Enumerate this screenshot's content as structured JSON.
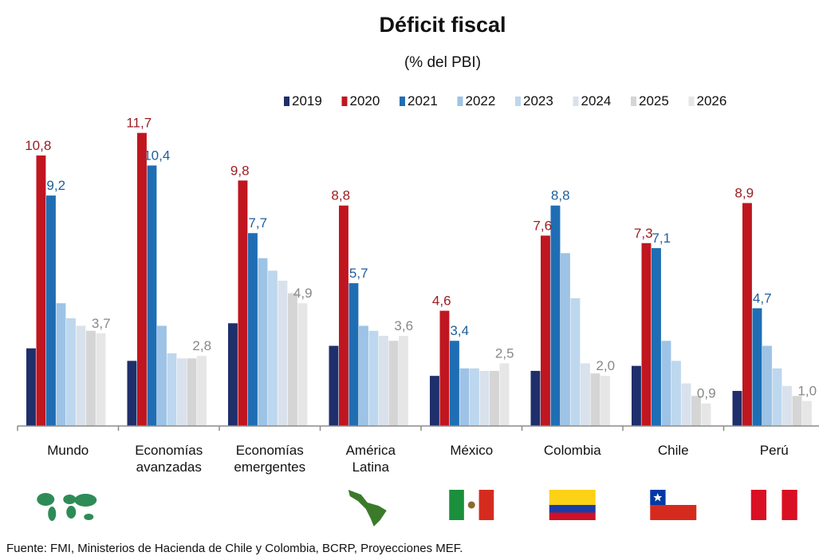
{
  "chart_data": {
    "type": "bar",
    "title": "Déficit fiscal",
    "subtitle": "(% del PBI)",
    "xlabel": "",
    "ylabel": "",
    "grid": false,
    "legend_position": "top",
    "categories": [
      [
        "Mundo"
      ],
      [
        "Economías",
        "avanzadas"
      ],
      [
        "Economías",
        "emergentes"
      ],
      [
        "América",
        "Latina"
      ],
      [
        "México"
      ],
      [
        "Colombia"
      ],
      [
        "Chile"
      ],
      [
        "Perú"
      ]
    ],
    "series": [
      {
        "name": "2019",
        "color": "#1f2f6b",
        "values": [
          3.1,
          2.6,
          4.1,
          3.2,
          2.0,
          2.2,
          2.4,
          1.4
        ]
      },
      {
        "name": "2020",
        "color": "#c0161f",
        "values": [
          10.8,
          11.7,
          9.8,
          8.8,
          4.6,
          7.6,
          7.3,
          8.9
        ]
      },
      {
        "name": "2021",
        "color": "#1f6eb4",
        "values": [
          9.2,
          10.4,
          7.7,
          5.7,
          3.4,
          8.8,
          7.1,
          4.7
        ]
      },
      {
        "name": "2022",
        "color": "#9dc3e6",
        "values": [
          4.9,
          4.0,
          6.7,
          4.0,
          2.3,
          6.9,
          3.4,
          3.2
        ]
      },
      {
        "name": "2023",
        "color": "#bdd7ee",
        "values": [
          4.3,
          2.9,
          6.2,
          3.8,
          2.3,
          5.1,
          2.6,
          2.3
        ]
      },
      {
        "name": "2024",
        "color": "#d9e1ec",
        "values": [
          4.0,
          2.7,
          5.8,
          3.6,
          2.2,
          2.5,
          1.7,
          1.6
        ]
      },
      {
        "name": "2025",
        "color": "#d5d5d5",
        "values": [
          3.8,
          2.7,
          5.3,
          3.4,
          2.2,
          2.1,
          1.2,
          1.2
        ]
      },
      {
        "name": "2026",
        "color": "#e6e6e6",
        "values": [
          3.7,
          2.8,
          4.9,
          3.6,
          2.5,
          2.0,
          0.9,
          1.0
        ]
      }
    ],
    "labels": [
      {
        "category": 0,
        "series": "2020",
        "text": "10,8",
        "color": "#9b1b1f"
      },
      {
        "category": 0,
        "series": "2021",
        "text": "9,2",
        "color": "#1f5f9b"
      },
      {
        "category": 0,
        "series": "2026",
        "text": "3,7",
        "color": "#888888"
      },
      {
        "category": 1,
        "series": "2020",
        "text": "11,7",
        "color": "#9b1b1f"
      },
      {
        "category": 1,
        "series": "2021",
        "text": "10,4",
        "color": "#1f5f9b"
      },
      {
        "category": 1,
        "series": "2026",
        "text": "2,8",
        "color": "#888888"
      },
      {
        "category": 2,
        "series": "2020",
        "text": "9,8",
        "color": "#9b1b1f"
      },
      {
        "category": 2,
        "series": "2021",
        "text": "7,7",
        "color": "#1f5f9b"
      },
      {
        "category": 2,
        "series": "2026",
        "text": "4,9",
        "color": "#888888"
      },
      {
        "category": 3,
        "series": "2020",
        "text": "8,8",
        "color": "#9b1b1f"
      },
      {
        "category": 3,
        "series": "2021",
        "text": "5,7",
        "color": "#1f5f9b"
      },
      {
        "category": 3,
        "series": "2026",
        "text": "3,6",
        "color": "#888888"
      },
      {
        "category": 4,
        "series": "2020",
        "text": "4,6",
        "color": "#9b1b1f"
      },
      {
        "category": 4,
        "series": "2021",
        "text": "3,4",
        "color": "#1f5f9b"
      },
      {
        "category": 4,
        "series": "2026",
        "text": "2,5",
        "color": "#888888"
      },
      {
        "category": 5,
        "series": "2020",
        "text": "7,6",
        "color": "#9b1b1f"
      },
      {
        "category": 5,
        "series": "2021",
        "text": "8,8",
        "color": "#1f5f9b"
      },
      {
        "category": 5,
        "series": "2026",
        "text": "2,0",
        "color": "#888888"
      },
      {
        "category": 6,
        "series": "2020",
        "text": "7,3",
        "color": "#9b1b1f"
      },
      {
        "category": 6,
        "series": "2021",
        "text": "7,1",
        "color": "#1f5f9b"
      },
      {
        "category": 6,
        "series": "2026",
        "text": "0,9",
        "color": "#888888"
      },
      {
        "category": 7,
        "series": "2020",
        "text": "8,9",
        "color": "#9b1b1f"
      },
      {
        "category": 7,
        "series": "2021",
        "text": "4,7",
        "color": "#1f5f9b"
      },
      {
        "category": 7,
        "series": "2026",
        "text": "1,0",
        "color": "#888888"
      }
    ],
    "category_icons": [
      "world-map-icon",
      "",
      "",
      "latin-america-map-icon",
      "mexico-flag-icon",
      "colombia-flag-icon",
      "chile-flag-icon",
      "peru-flag-icon"
    ],
    "ylim": [
      0,
      12.5
    ],
    "source": "Fuente: FMI, Ministerios de Hacienda de Chile y Colombia, BCRP, Proyecciones MEF."
  }
}
